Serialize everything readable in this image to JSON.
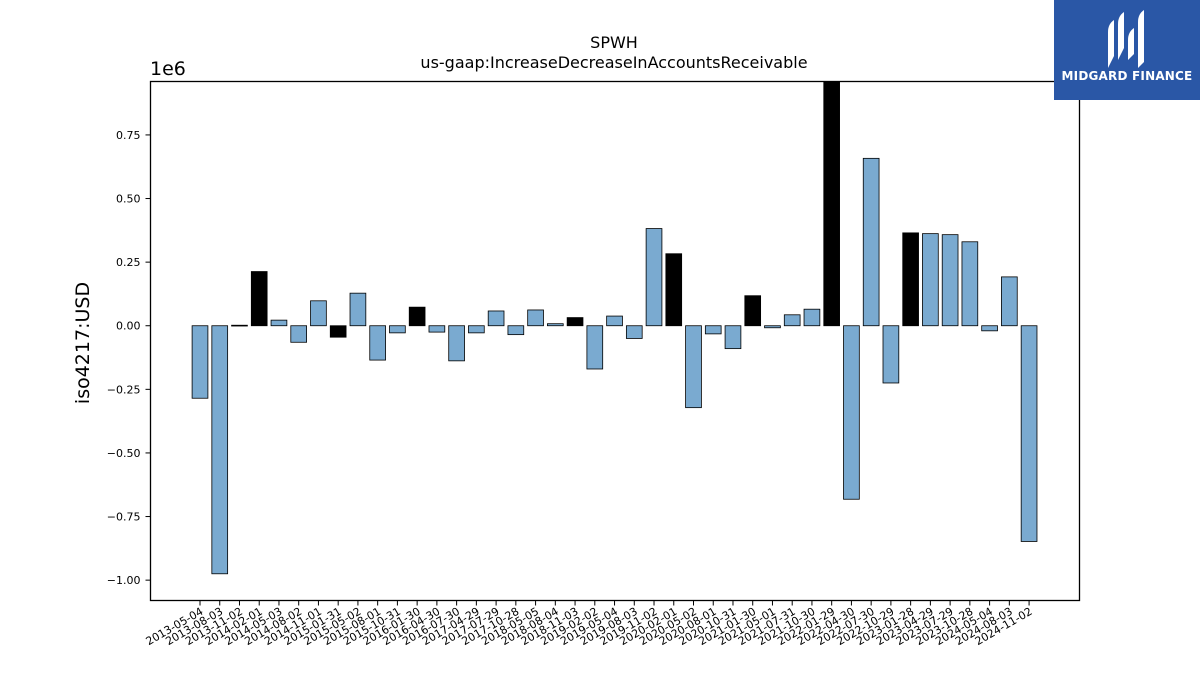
{
  "brand": {
    "name": "MIDGARD FINANCE",
    "accent": "#2a57a6"
  },
  "chart_data": {
    "type": "bar",
    "title": "SPWH",
    "subtitle": "us-gaap:IncreaseDecreaseInAccountsReceivable",
    "ylabel": "iso4217:USD",
    "xlabel": "",
    "scale_label": "1e6",
    "ylim": [
      -1.08,
      0.96
    ],
    "yticks": [
      -1.0,
      -0.75,
      -0.5,
      -0.25,
      0.0,
      0.25,
      0.5,
      0.75
    ],
    "ytick_labels": [
      "−1.00",
      "−0.75",
      "−0.50",
      "−0.25",
      "0.00",
      "0.25",
      "0.50",
      "0.75"
    ],
    "grid": false,
    "legend": "none",
    "colors": {
      "default": "#7aaad0",
      "highlight": "#000000"
    },
    "categories": [
      "2013-05-04",
      "2013-08-03",
      "2013-11-02",
      "2014-02-01",
      "2014-05-03",
      "2014-08-02",
      "2014-11-01",
      "2015-01-31",
      "2015-05-02",
      "2015-08-01",
      "2015-10-31",
      "2016-01-30",
      "2016-04-30",
      "2016-07-30",
      "2017-04-29",
      "2017-07-29",
      "2017-10-28",
      "2018-05-05",
      "2018-08-04",
      "2018-11-03",
      "2019-02-02",
      "2019-05-04",
      "2019-08-03",
      "2019-11-02",
      "2020-02-01",
      "2020-05-02",
      "2020-08-01",
      "2020-10-31",
      "2021-01-30",
      "2021-05-01",
      "2021-07-31",
      "2021-10-30",
      "2022-01-29",
      "2022-04-30",
      "2022-07-30",
      "2022-10-29",
      "2023-01-28",
      "2023-04-29",
      "2023-07-29",
      "2023-10-28",
      "2024-05-04",
      "2024-08-03",
      "2024-11-02"
    ],
    "values": [
      -0.285,
      -0.975,
      0.002,
      0.213,
      0.022,
      -0.065,
      0.098,
      -0.045,
      0.128,
      -0.135,
      -0.028,
      0.073,
      -0.025,
      -0.138,
      -0.028,
      0.058,
      -0.035,
      0.062,
      0.008,
      0.032,
      -0.17,
      0.038,
      -0.05,
      0.382,
      0.283,
      -0.322,
      -0.032,
      -0.09,
      0.118,
      -0.008,
      0.043,
      0.065,
      0.96,
      -0.682,
      0.658,
      -0.225,
      0.365,
      0.362,
      0.358,
      0.33,
      -0.02,
      0.192,
      -0.848
    ],
    "highlighted": [
      "2014-02-01",
      "2015-01-31",
      "2016-01-30",
      "2018-11-03",
      "2020-02-01",
      "2021-01-30",
      "2022-01-29",
      "2023-01-28"
    ]
  }
}
